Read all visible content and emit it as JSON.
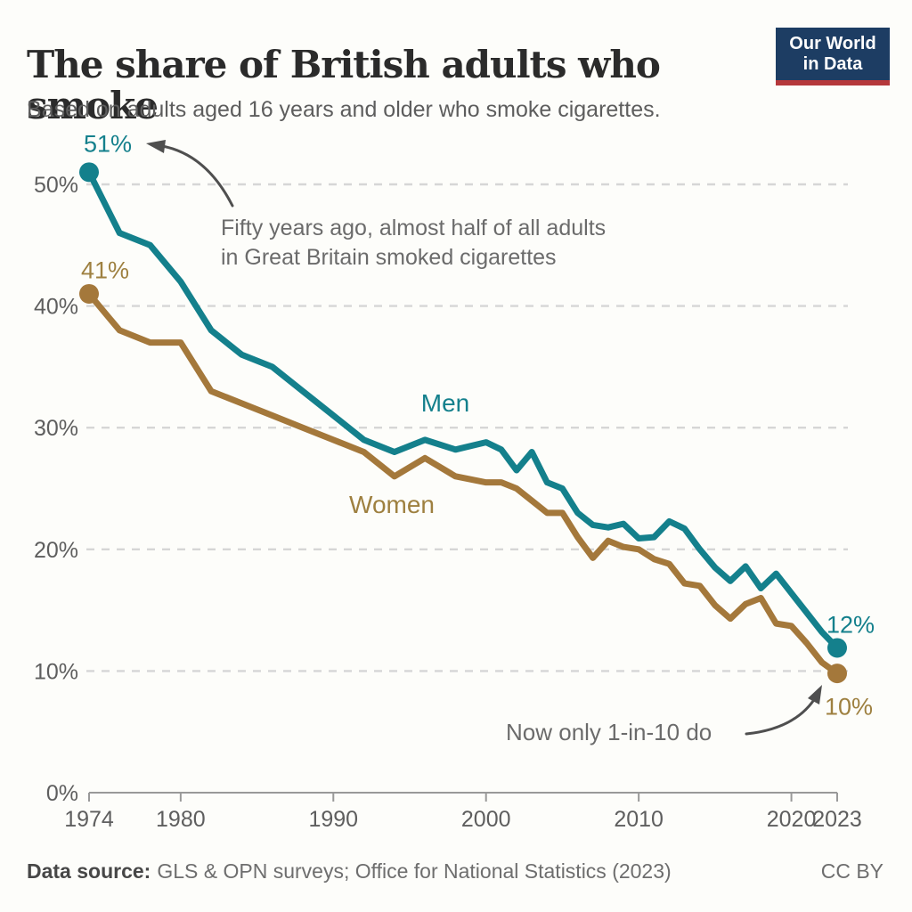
{
  "header": {
    "logo": {
      "line1": "Our World",
      "line2": "in Data"
    }
  },
  "annotations": {
    "top": {
      "line1": "Fifty years ago, almost half of all adults",
      "line2": "in Great Britain smoked cigarettes"
    },
    "bottom": "Now only 1-in-10 do"
  },
  "footer": {
    "source_label": "Data source:",
    "source_text": "GLS & OPN surveys; Office for National Statistics (2023)",
    "license": "CC BY"
  },
  "colors": {
    "men": "#14808C",
    "women": "#A4783B",
    "women_text": "#9E8040",
    "grid": "#d6d6d6",
    "axis": "#999999",
    "tick_text": "#5e5e5e",
    "arrow": "#4f4f4f"
  },
  "chart_data": {
    "type": "line",
    "title": "The share of British adults who smoke",
    "subtitle": "Based on adults aged 16 years and older who smoke cigarettes.",
    "xlabel": "",
    "ylabel": "",
    "xlim": [
      1974,
      2023
    ],
    "ylim": [
      0,
      53
    ],
    "x_ticks": [
      1974,
      1980,
      1990,
      2000,
      2010,
      2020,
      2023
    ],
    "y_ticks": [
      0,
      10,
      20,
      30,
      40,
      50
    ],
    "y_tick_suffix": "%",
    "grid": "horizontal-dashed",
    "legend": "inline-series-labels",
    "x": [
      1974,
      1976,
      1978,
      1980,
      1982,
      1984,
      1986,
      1988,
      1990,
      1992,
      1994,
      1996,
      1998,
      2000,
      2001,
      2002,
      2003,
      2004,
      2005,
      2006,
      2007,
      2008,
      2009,
      2010,
      2011,
      2012,
      2013,
      2014,
      2015,
      2016,
      2017,
      2018,
      2019,
      2020,
      2021,
      2022,
      2023
    ],
    "series": [
      {
        "name": "Men",
        "start_label": "51%",
        "end_label": "12%",
        "values": [
          51,
          46,
          45,
          42,
          38,
          36,
          35,
          33,
          31,
          29,
          28,
          29,
          28.2,
          28.8,
          28.2,
          26.5,
          28,
          25.5,
          25,
          23,
          22,
          21.8,
          22.1,
          20.9,
          21,
          22.3,
          21.7,
          20,
          18.5,
          17.4,
          18.6,
          16.8,
          18,
          16.4,
          14.8,
          13.2,
          11.9
        ]
      },
      {
        "name": "Women",
        "start_label": "41%",
        "end_label": "10%",
        "values": [
          41,
          38,
          37,
          37,
          33,
          32,
          31,
          30,
          29,
          28,
          26,
          27.5,
          26,
          25.5,
          25.5,
          25,
          24,
          23,
          23,
          21,
          19.3,
          20.7,
          20.2,
          20,
          19.2,
          18.8,
          17.2,
          17,
          15.4,
          14.3,
          15.5,
          16,
          13.9,
          13.7,
          12.3,
          10.7,
          9.8
        ]
      }
    ]
  }
}
